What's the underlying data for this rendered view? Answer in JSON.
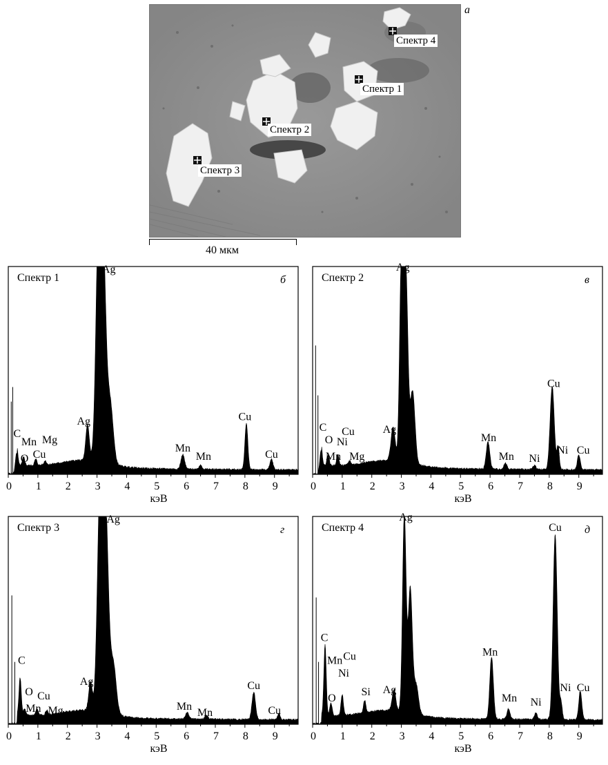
{
  "micrograph": {
    "panel_letter": "а",
    "scale_bar": "40 мкм",
    "spots": [
      {
        "label": "Спектр 1"
      },
      {
        "label": "Спектр 2"
      },
      {
        "label": "Спектр 3"
      },
      {
        "label": "Спектр 4"
      }
    ]
  },
  "chart_data": [
    {
      "type": "area",
      "title": "Спектр 1",
      "panel_letter": "б",
      "xlabel": "кэВ",
      "xlim": [
        0,
        9.8
      ],
      "ylim": [
        0,
        100
      ],
      "xticks": [
        0,
        1,
        2,
        3,
        4,
        5,
        6,
        7,
        8,
        9
      ],
      "peaks": [
        {
          "el": "Ag",
          "x": 3.05,
          "y": 100,
          "w": 0.09
        },
        {
          "el": "Ag",
          "x": 3.2,
          "y": 100,
          "w": 0.1
        },
        {
          "el": "Ag",
          "x": 3.45,
          "y": 28,
          "w": 0.1
        },
        {
          "el": "Ag",
          "x": 2.68,
          "y": 17,
          "w": 0.06
        },
        {
          "el": "Cu",
          "x": 8.05,
          "y": 22,
          "w": 0.05
        },
        {
          "el": "Cu",
          "x": 8.9,
          "y": 5,
          "w": 0.05
        },
        {
          "el": "Mn",
          "x": 5.9,
          "y": 7,
          "w": 0.06
        },
        {
          "el": "Mn",
          "x": 6.5,
          "y": 2,
          "w": 0.05
        },
        {
          "el": "C",
          "x": 0.28,
          "y": 10,
          "w": 0.04
        },
        {
          "el": "O",
          "x": 0.52,
          "y": 4,
          "w": 0.04
        },
        {
          "el": "Cu",
          "x": 0.93,
          "y": 3,
          "w": 0.04
        },
        {
          "el": "Mg",
          "x": 1.25,
          "y": 2,
          "w": 0.04
        }
      ],
      "spikes": [
        {
          "x": 0.1,
          "y": 35
        },
        {
          "x": 0.15,
          "y": 42
        }
      ],
      "labels": [
        {
          "text": "Ag",
          "x": 3.4,
          "y": 97
        },
        {
          "text": "Ag",
          "x": 2.55,
          "y": 24
        },
        {
          "text": "C",
          "x": 0.3,
          "y": 18
        },
        {
          "text": "Mn",
          "x": 0.7,
          "y": 14
        },
        {
          "text": "Mg",
          "x": 1.4,
          "y": 15
        },
        {
          "text": "O",
          "x": 0.55,
          "y": 6
        },
        {
          "text": "Cu",
          "x": 1.05,
          "y": 8
        },
        {
          "text": "Mn",
          "x": 5.9,
          "y": 11
        },
        {
          "text": "Mn",
          "x": 6.6,
          "y": 7
        },
        {
          "text": "Cu",
          "x": 8.0,
          "y": 26
        },
        {
          "text": "Cu",
          "x": 8.9,
          "y": 8
        }
      ]
    },
    {
      "type": "area",
      "title": "Спектр 2",
      "panel_letter": "в",
      "xlabel": "кэВ",
      "xlim": [
        0,
        9.8
      ],
      "ylim": [
        0,
        100
      ],
      "xticks": [
        0,
        1,
        2,
        3,
        4,
        5,
        6,
        7,
        8,
        9
      ],
      "peaks": [
        {
          "el": "Ag",
          "x": 3.0,
          "y": 95,
          "w": 0.06
        },
        {
          "el": "Ag",
          "x": 3.15,
          "y": 92,
          "w": 0.07
        },
        {
          "el": "Ag",
          "x": 3.38,
          "y": 35,
          "w": 0.08
        },
        {
          "el": "Ag",
          "x": 2.72,
          "y": 16,
          "w": 0.07
        },
        {
          "el": "Cu",
          "x": 8.1,
          "y": 40,
          "w": 0.07
        },
        {
          "el": "Ni",
          "x": 8.3,
          "y": 11,
          "w": 0.04
        },
        {
          "el": "Cu",
          "x": 9.0,
          "y": 7,
          "w": 0.05
        },
        {
          "el": "Mn",
          "x": 5.93,
          "y": 13,
          "w": 0.06
        },
        {
          "el": "Mn",
          "x": 6.52,
          "y": 3,
          "w": 0.05
        },
        {
          "el": "Ni",
          "x": 7.5,
          "y": 2,
          "w": 0.05
        },
        {
          "el": "C",
          "x": 0.28,
          "y": 11,
          "w": 0.04
        },
        {
          "el": "O",
          "x": 0.52,
          "y": 5,
          "w": 0.04
        },
        {
          "el": "Ni",
          "x": 0.85,
          "y": 5,
          "w": 0.04
        },
        {
          "el": "Mg",
          "x": 1.25,
          "y": 2,
          "w": 0.04
        }
      ],
      "spikes": [
        {
          "x": 0.1,
          "y": 62
        },
        {
          "x": 0.18,
          "y": 38
        }
      ],
      "labels": [
        {
          "text": "Ag",
          "x": 3.05,
          "y": 98
        },
        {
          "text": "Ag",
          "x": 2.6,
          "y": 20
        },
        {
          "text": "C",
          "x": 0.35,
          "y": 21
        },
        {
          "text": "Cu",
          "x": 1.2,
          "y": 19
        },
        {
          "text": "O",
          "x": 0.55,
          "y": 15
        },
        {
          "text": "Ni",
          "x": 1.0,
          "y": 14
        },
        {
          "text": "Mn",
          "x": 0.7,
          "y": 7
        },
        {
          "text": "Mg",
          "x": 1.5,
          "y": 7
        },
        {
          "text": "Mn",
          "x": 5.95,
          "y": 16
        },
        {
          "text": "Mn",
          "x": 6.55,
          "y": 7
        },
        {
          "text": "Ni",
          "x": 7.5,
          "y": 6
        },
        {
          "text": "Cu",
          "x": 8.15,
          "y": 42
        },
        {
          "text": "Ni",
          "x": 8.45,
          "y": 10
        },
        {
          "text": "Cu",
          "x": 9.15,
          "y": 10
        }
      ]
    },
    {
      "type": "area",
      "title": "Спектр 3",
      "panel_letter": "г",
      "xlabel": "кэВ",
      "xlim": [
        0,
        9.8
      ],
      "ylim": [
        0,
        100
      ],
      "xticks": [
        0,
        1,
        2,
        3,
        4,
        5,
        6,
        7,
        8,
        9
      ],
      "peaks": [
        {
          "el": "Ag",
          "x": 3.1,
          "y": 100,
          "w": 0.09
        },
        {
          "el": "Ag",
          "x": 3.28,
          "y": 100,
          "w": 0.1
        },
        {
          "el": "Ag",
          "x": 3.55,
          "y": 24,
          "w": 0.1
        },
        {
          "el": "Ag",
          "x": 2.78,
          "y": 14,
          "w": 0.06
        },
        {
          "el": "Cu",
          "x": 8.3,
          "y": 13,
          "w": 0.06
        },
        {
          "el": "Cu",
          "x": 9.15,
          "y": 3,
          "w": 0.04
        },
        {
          "el": "Mn",
          "x": 6.05,
          "y": 3,
          "w": 0.06
        },
        {
          "el": "Mn",
          "x": 6.7,
          "y": 2,
          "w": 0.05
        },
        {
          "el": "C",
          "x": 0.4,
          "y": 18,
          "w": 0.04
        },
        {
          "el": "O",
          "x": 0.55,
          "y": 3,
          "w": 0.04
        },
        {
          "el": "Cu",
          "x": 0.97,
          "y": 3,
          "w": 0.04
        },
        {
          "el": "Mg",
          "x": 1.3,
          "y": 2,
          "w": 0.04
        }
      ],
      "spikes": [
        {
          "x": 0.12,
          "y": 62
        },
        {
          "x": 0.22,
          "y": 30
        }
      ],
      "labels": [
        {
          "text": "Ag",
          "x": 3.55,
          "y": 97
        },
        {
          "text": "Ag",
          "x": 2.65,
          "y": 19
        },
        {
          "text": "C",
          "x": 0.45,
          "y": 29
        },
        {
          "text": "O",
          "x": 0.7,
          "y": 14
        },
        {
          "text": "Cu",
          "x": 1.2,
          "y": 12
        },
        {
          "text": "Mn",
          "x": 0.85,
          "y": 6
        },
        {
          "text": "Mg",
          "x": 1.6,
          "y": 5
        },
        {
          "text": "Mn",
          "x": 5.95,
          "y": 7
        },
        {
          "text": "Mn",
          "x": 6.65,
          "y": 4
        },
        {
          "text": "Cu",
          "x": 8.3,
          "y": 17
        },
        {
          "text": "Cu",
          "x": 9.0,
          "y": 5
        }
      ]
    },
    {
      "type": "area",
      "title": "Спектр 4",
      "panel_letter": "д",
      "xlabel": "кэВ",
      "xlim": [
        0,
        9.8
      ],
      "ylim": [
        0,
        100
      ],
      "xticks": [
        0,
        1,
        2,
        3,
        4,
        5,
        6,
        7,
        8,
        9
      ],
      "peaks": [
        {
          "el": "Ag",
          "x": 3.1,
          "y": 95,
          "w": 0.06
        },
        {
          "el": "Ag",
          "x": 3.3,
          "y": 60,
          "w": 0.07
        },
        {
          "el": "Ag",
          "x": 3.5,
          "y": 14,
          "w": 0.08
        },
        {
          "el": "Ag",
          "x": 2.75,
          "y": 10,
          "w": 0.06
        },
        {
          "el": "Cu",
          "x": 8.2,
          "y": 89,
          "w": 0.07
        },
        {
          "el": "Ni",
          "x": 8.4,
          "y": 8,
          "w": 0.04
        },
        {
          "el": "Cu",
          "x": 9.05,
          "y": 14,
          "w": 0.05
        },
        {
          "el": "Mn",
          "x": 6.05,
          "y": 30,
          "w": 0.06
        },
        {
          "el": "Mn",
          "x": 6.62,
          "y": 5,
          "w": 0.05
        },
        {
          "el": "Ni",
          "x": 7.55,
          "y": 3,
          "w": 0.05
        },
        {
          "el": "Si",
          "x": 1.76,
          "y": 6,
          "w": 0.04
        },
        {
          "el": "C",
          "x": 0.42,
          "y": 34,
          "w": 0.04
        },
        {
          "el": "O",
          "x": 0.62,
          "y": 6,
          "w": 0.04
        },
        {
          "el": "Cu",
          "x": 1.0,
          "y": 10,
          "w": 0.04
        }
      ],
      "spikes": [
        {
          "x": 0.12,
          "y": 61
        },
        {
          "x": 0.2,
          "y": 30
        }
      ],
      "labels": [
        {
          "text": "Ag",
          "x": 3.15,
          "y": 98
        },
        {
          "text": "Ag",
          "x": 2.6,
          "y": 15
        },
        {
          "text": "C",
          "x": 0.4,
          "y": 40
        },
        {
          "text": "Mn",
          "x": 0.75,
          "y": 29
        },
        {
          "text": "Cu",
          "x": 1.25,
          "y": 31
        },
        {
          "text": "Ni",
          "x": 1.05,
          "y": 23
        },
        {
          "text": "O",
          "x": 0.65,
          "y": 11
        },
        {
          "text": "Si",
          "x": 1.8,
          "y": 14
        },
        {
          "text": "Mn",
          "x": 6.0,
          "y": 33
        },
        {
          "text": "Mn",
          "x": 6.65,
          "y": 11
        },
        {
          "text": "Ni",
          "x": 7.55,
          "y": 9
        },
        {
          "text": "Cu",
          "x": 8.2,
          "y": 93
        },
        {
          "text": "Ni",
          "x": 8.55,
          "y": 16
        },
        {
          "text": "Cu",
          "x": 9.15,
          "y": 16
        }
      ]
    }
  ]
}
